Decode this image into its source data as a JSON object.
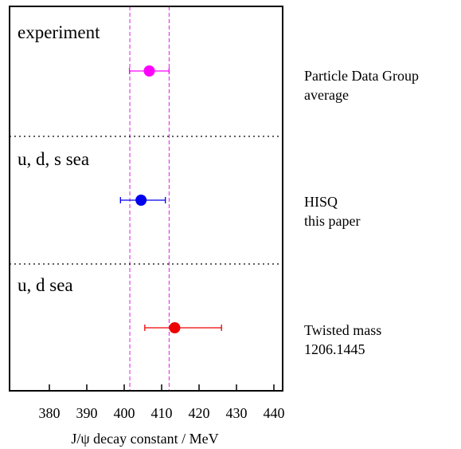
{
  "chart_data": {
    "type": "scatter",
    "title": "",
    "xlabel": "J/ψ decay constant / MeV",
    "ylabel": "",
    "xlim": [
      370,
      440
    ],
    "xticks": [
      380,
      390,
      400,
      410,
      420,
      430,
      440
    ],
    "grid": false,
    "band": {
      "lower": 401.5,
      "upper": 412.0,
      "color": "#e020e0"
    },
    "sections": [
      {
        "heading": "experiment",
        "label_line1": "Particle Data Group",
        "label_line2": "average",
        "value": 406.7,
        "err_low": 5.3,
        "err_high": 5.3,
        "color": "#ff00ff"
      },
      {
        "heading": "u, d, s sea",
        "label_line1": "HISQ",
        "label_line2": "this paper",
        "value": 404.5,
        "err_low": 5.5,
        "err_high": 6.5,
        "color": "#0000ee"
      },
      {
        "heading": "u, d sea",
        "label_line1": "Twisted mass",
        "label_line2": "1206.1445",
        "value": 413.5,
        "err_low": 8.0,
        "err_high": 12.5,
        "color": "#ee0000"
      }
    ]
  }
}
